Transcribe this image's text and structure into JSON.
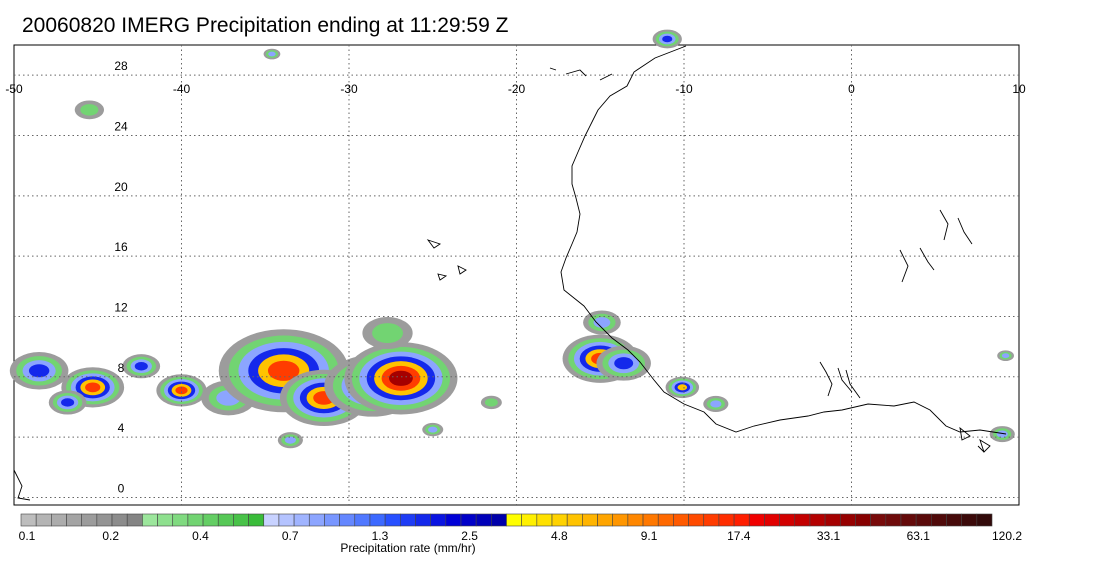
{
  "title": "20060820 IMERG Precipitation ending at 11:29:59 Z",
  "chart_data": {
    "type": "heatmap",
    "title": "20060820 IMERG Precipitation ending at 11:29:59 Z",
    "x_ticks": [
      -50,
      -40,
      -30,
      -20,
      -10,
      0,
      10
    ],
    "y_ticks": [
      28,
      24,
      20,
      16,
      12,
      8,
      4,
      0
    ],
    "xlim": [
      -50,
      10
    ],
    "ylim": [
      -0.5,
      30
    ],
    "grid": true,
    "colorbar": {
      "label": "Precipitation rate (mm/hr)",
      "tick_labels": [
        "0.1",
        "0.2",
        "0.4",
        "0.7",
        "1.3",
        "2.5",
        "4.8",
        "9.1",
        "17.4",
        "33.1",
        "63.1",
        "120.2"
      ],
      "colors": [
        "#bdbdbd",
        "#b4b4b4",
        "#acacac",
        "#a4a4a4",
        "#9c9c9c",
        "#949494",
        "#8c8c8c",
        "#848484",
        "#9ce69c",
        "#8ee08e",
        "#80da80",
        "#72d472",
        "#64ce64",
        "#56c856",
        "#48c248",
        "#3abc3a",
        "#c8d2ff",
        "#b4c3ff",
        "#a0b4ff",
        "#8ca5ff",
        "#7896ff",
        "#6487ff",
        "#5078ff",
        "#3c69ff",
        "#2850ff",
        "#1e3cf5",
        "#1428eb",
        "#0a14e1",
        "#0000d7",
        "#0000c8",
        "#0000b9",
        "#0000aa",
        "#ffff00",
        "#fff000",
        "#ffe100",
        "#ffd200",
        "#ffc300",
        "#ffb400",
        "#ffa500",
        "#ff9600",
        "#ff8700",
        "#ff7800",
        "#ff6900",
        "#ff5a00",
        "#ff4b00",
        "#ff3c00",
        "#ff2d00",
        "#ff1e00",
        "#f00000",
        "#e10000",
        "#d20000",
        "#c30000",
        "#b40000",
        "#a50000",
        "#960000",
        "#870000",
        "#780a0a",
        "#6e0a0a",
        "#640a0a",
        "#5a0a0a",
        "#500a0a",
        "#460a0a",
        "#3c0a0a",
        "#320a0a"
      ]
    },
    "rain_cells": [
      {
        "lon": -48.5,
        "lat": 8.4,
        "r": 1.4,
        "level": 2
      },
      {
        "lon": -45.3,
        "lat": 7.3,
        "r": 1.5,
        "level": 4
      },
      {
        "lon": -46.8,
        "lat": 6.3,
        "r": 0.9,
        "level": 2
      },
      {
        "lon": -42.4,
        "lat": 8.7,
        "r": 0.9,
        "level": 2
      },
      {
        "lon": -40.0,
        "lat": 7.1,
        "r": 1.2,
        "level": 4
      },
      {
        "lon": -37.2,
        "lat": 6.6,
        "r": 1.3,
        "level": 1
      },
      {
        "lon": -33.9,
        "lat": 8.4,
        "r": 3.1,
        "level": 4
      },
      {
        "lon": -31.5,
        "lat": 6.6,
        "r": 2.1,
        "level": 4
      },
      {
        "lon": -28.6,
        "lat": 7.4,
        "r": 2.3,
        "level": 3
      },
      {
        "lon": -26.9,
        "lat": 7.9,
        "r": 2.7,
        "level": 5
      },
      {
        "lon": -27.7,
        "lat": 10.9,
        "r": 1.2,
        "level": 0
      },
      {
        "lon": -15.0,
        "lat": 9.2,
        "r": 1.8,
        "level": 4
      },
      {
        "lon": -14.9,
        "lat": 11.6,
        "r": 0.9,
        "level": 1
      },
      {
        "lon": -13.6,
        "lat": 8.9,
        "r": 1.3,
        "level": 2
      },
      {
        "lon": -10.1,
        "lat": 7.3,
        "r": 0.8,
        "level": 3
      },
      {
        "lon": -8.1,
        "lat": 6.2,
        "r": 0.6,
        "level": 1
      },
      {
        "lon": -45.5,
        "lat": 25.7,
        "r": 0.7,
        "level": 0
      },
      {
        "lon": -34.6,
        "lat": 29.4,
        "r": 0.4,
        "level": 1
      },
      {
        "lon": -11.0,
        "lat": 30.4,
        "r": 0.7,
        "level": 2
      },
      {
        "lon": -21.5,
        "lat": 6.3,
        "r": 0.5,
        "level": 0
      },
      {
        "lon": 9.0,
        "lat": 4.2,
        "r": 0.6,
        "level": 1
      },
      {
        "lon": 9.2,
        "lat": 9.4,
        "r": 0.4,
        "level": 1
      },
      {
        "lon": -25.0,
        "lat": 4.5,
        "r": 0.5,
        "level": 1
      },
      {
        "lon": -33.5,
        "lat": 3.8,
        "r": 0.6,
        "level": 1
      }
    ]
  }
}
